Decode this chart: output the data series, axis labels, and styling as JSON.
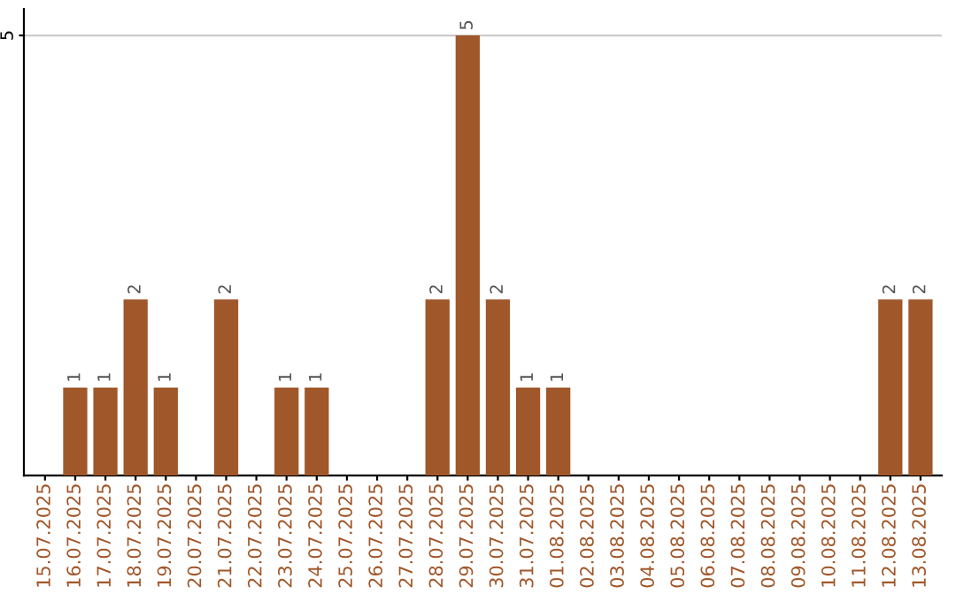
{
  "chart_data": {
    "type": "bar",
    "categories": [
      "15.07.2025",
      "16.07.2025",
      "17.07.2025",
      "18.07.2025",
      "19.07.2025",
      "20.07.2025",
      "21.07.2025",
      "22.07.2025",
      "23.07.2025",
      "24.07.2025",
      "25.07.2025",
      "26.07.2025",
      "27.07.2025",
      "28.07.2025",
      "29.07.2025",
      "30.07.2025",
      "31.07.2025",
      "01.08.2025",
      "02.08.2025",
      "03.08.2025",
      "04.08.2025",
      "05.08.2025",
      "06.08.2025",
      "07.08.2025",
      "08.08.2025",
      "09.08.2025",
      "10.08.2025",
      "11.08.2025",
      "12.08.2025",
      "13.08.2025"
    ],
    "values": [
      0,
      1,
      1,
      2,
      1,
      0,
      2,
      0,
      1,
      1,
      0,
      0,
      0,
      2,
      5,
      2,
      1,
      1,
      0,
      0,
      0,
      0,
      0,
      0,
      0,
      0,
      0,
      0,
      2,
      2
    ],
    "value_labels": [
      null,
      "1",
      "1",
      "2",
      "1",
      null,
      "2",
      null,
      "1",
      "1",
      null,
      null,
      null,
      "2",
      "5",
      "2",
      "1",
      "1",
      null,
      null,
      null,
      null,
      null,
      null,
      null,
      null,
      null,
      null,
      "2",
      "2"
    ],
    "color": "#a0572a",
    "ylim": [
      0,
      5.3
    ],
    "yticks": [
      5
    ],
    "grid": "y"
  }
}
